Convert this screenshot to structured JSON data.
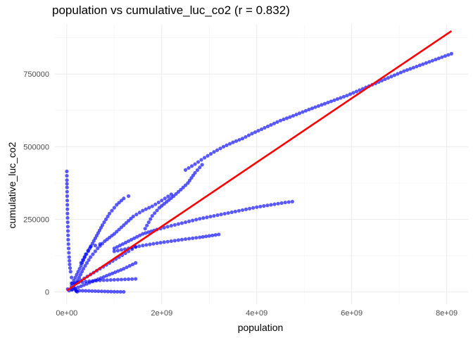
{
  "chart_data": {
    "type": "scatter",
    "title": "population vs cumulative_luc_co2 (r = 0.832)",
    "xlabel": "population",
    "ylabel": "cumulative_luc_co2",
    "xlim": [
      -250000000,
      8450000000
    ],
    "ylim": [
      -42000,
      920000
    ],
    "x_ticks": [
      0,
      2000000000,
      4000000000,
      6000000000,
      8000000000
    ],
    "x_tick_labels": [
      "0e+00",
      "2e+09",
      "4e+09",
      "6e+09",
      "8e+09"
    ],
    "y_ticks": [
      0,
      250000,
      500000,
      750000
    ],
    "y_tick_labels": [
      "0",
      "250000",
      "500000",
      "750000"
    ],
    "grid": true,
    "legend": "none",
    "point_color": "#0000ff",
    "line_color": "#ff0000",
    "regression_line": {
      "x": [
        0,
        8100000000
      ],
      "y": [
        5000,
        898000
      ]
    },
    "series": [
      {
        "values": [
          [
            2500000000,
            420000
          ],
          [
            2700000000,
            440000
          ],
          [
            2900000000,
            462000
          ],
          [
            3100000000,
            482000
          ],
          [
            3300000000,
            500000
          ],
          [
            3500000000,
            515000
          ],
          [
            3700000000,
            528000
          ],
          [
            3900000000,
            545000
          ],
          [
            4100000000,
            560000
          ],
          [
            4300000000,
            575000
          ],
          [
            4500000000,
            590000
          ],
          [
            4700000000,
            602000
          ],
          [
            4900000000,
            615000
          ],
          [
            5100000000,
            628000
          ],
          [
            5300000000,
            640000
          ],
          [
            5500000000,
            652000
          ],
          [
            5700000000,
            664000
          ],
          [
            5900000000,
            676000
          ],
          [
            6100000000,
            690000
          ],
          [
            6300000000,
            704000
          ],
          [
            6500000000,
            718000
          ],
          [
            6700000000,
            732000
          ],
          [
            6900000000,
            746000
          ],
          [
            7100000000,
            760000
          ],
          [
            7300000000,
            772000
          ],
          [
            7500000000,
            784000
          ],
          [
            7700000000,
            796000
          ],
          [
            7900000000,
            808000
          ],
          [
            8100000000,
            820000
          ]
        ]
      },
      {
        "values": [
          [
            1650000000,
            218000
          ],
          [
            1800000000,
            262000
          ],
          [
            1950000000,
            290000
          ],
          [
            2100000000,
            310000
          ],
          [
            2250000000,
            330000
          ],
          [
            2400000000,
            352000
          ],
          [
            2550000000,
            375000
          ],
          [
            2700000000,
            410000
          ],
          [
            2850000000,
            438000
          ]
        ]
      },
      {
        "values": [
          [
            200000000,
            30000
          ],
          [
            350000000,
            80000
          ],
          [
            500000000,
            120000
          ],
          [
            650000000,
            150000
          ],
          [
            800000000,
            175000
          ],
          [
            1000000000,
            200000
          ],
          [
            1200000000,
            230000
          ],
          [
            1400000000,
            260000
          ],
          [
            1600000000,
            280000
          ],
          [
            1800000000,
            295000
          ],
          [
            2000000000,
            315000
          ],
          [
            2200000000,
            336000
          ]
        ]
      },
      {
        "values": [
          [
            1000000000,
            150000
          ],
          [
            1300000000,
            175000
          ],
          [
            1600000000,
            200000
          ],
          [
            1900000000,
            215000
          ],
          [
            2200000000,
            228000
          ],
          [
            2500000000,
            240000
          ],
          [
            2800000000,
            252000
          ],
          [
            3100000000,
            262000
          ],
          [
            3400000000,
            272000
          ],
          [
            3700000000,
            282000
          ],
          [
            4000000000,
            292000
          ],
          [
            4300000000,
            300000
          ],
          [
            4600000000,
            308000
          ],
          [
            4750000000,
            311000
          ]
        ]
      },
      {
        "values": [
          [
            1000000000,
            140000
          ],
          [
            1300000000,
            150000
          ],
          [
            1600000000,
            160000
          ],
          [
            1900000000,
            168000
          ],
          [
            2200000000,
            175000
          ],
          [
            2500000000,
            182000
          ],
          [
            2800000000,
            188000
          ],
          [
            3000000000,
            193000
          ],
          [
            3200000000,
            198000
          ]
        ]
      },
      {
        "values": [
          [
            300000000,
            100000
          ],
          [
            450000000,
            140000
          ],
          [
            600000000,
            185000
          ],
          [
            750000000,
            230000
          ],
          [
            900000000,
            270000
          ],
          [
            1050000000,
            300000
          ],
          [
            1200000000,
            322000
          ],
          [
            1300000000,
            330000
          ]
        ]
      },
      {
        "values": [
          [
            150000000,
            40000
          ],
          [
            300000000,
            90000
          ],
          [
            400000000,
            130000
          ],
          [
            500000000,
            155000
          ],
          [
            600000000,
            160000
          ],
          [
            700000000,
            165000
          ]
        ]
      },
      {
        "values": [
          [
            100000000,
            20000
          ],
          [
            300000000,
            40000
          ],
          [
            500000000,
            60000
          ],
          [
            700000000,
            80000
          ],
          [
            900000000,
            100000
          ],
          [
            1100000000,
            120000
          ],
          [
            1300000000,
            140000
          ],
          [
            1450000000,
            155000
          ]
        ]
      },
      {
        "values": [
          [
            50000000,
            5000
          ],
          [
            300000000,
            20000
          ],
          [
            600000000,
            40000
          ],
          [
            900000000,
            60000
          ],
          [
            1200000000,
            80000
          ],
          [
            1450000000,
            100000
          ]
        ]
      },
      {
        "values": [
          [
            100000000,
            30000
          ],
          [
            400000000,
            36000
          ],
          [
            700000000,
            40000
          ],
          [
            1000000000,
            42000
          ],
          [
            1300000000,
            44000
          ],
          [
            1450000000,
            45000
          ]
        ]
      },
      {
        "values": [
          [
            20000000,
            10000
          ],
          [
            200000000,
            5000
          ],
          [
            400000000,
            4000
          ],
          [
            600000000,
            3000
          ],
          [
            800000000,
            2000
          ],
          [
            1000000000,
            1000
          ],
          [
            1200000000,
            500
          ]
        ]
      },
      {
        "values": [
          [
            1000000,
            415000
          ],
          [
            2000000,
            400000
          ],
          [
            3000000,
            385000
          ],
          [
            5000000,
            360000
          ],
          [
            8000000,
            330000
          ],
          [
            12000000,
            300000
          ],
          [
            15000000,
            270000
          ],
          [
            20000000,
            240000
          ],
          [
            25000000,
            210000
          ],
          [
            30000000,
            180000
          ],
          [
            40000000,
            150000
          ],
          [
            50000000,
            120000
          ],
          [
            60000000,
            95000
          ],
          [
            80000000,
            70000
          ],
          [
            100000000,
            50000
          ],
          [
            120000000,
            30000
          ],
          [
            150000000,
            15000
          ],
          [
            180000000,
            8000
          ],
          [
            200000000,
            3000
          ],
          [
            220000000,
            1000
          ]
        ]
      }
    ]
  }
}
